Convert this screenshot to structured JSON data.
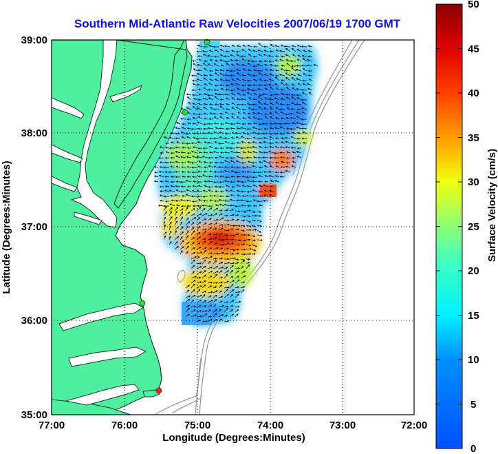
{
  "title": "Southern Mid-Atlantic Raw Velocities 2007/06/19 1700 GMT",
  "x_axis": {
    "label": "Longitude (Degrees:Minutes)",
    "ticks": [
      "77:00",
      "76:00",
      "75:00",
      "74:00",
      "73:00",
      "72:00"
    ],
    "range": [
      -77,
      -72
    ]
  },
  "y_axis": {
    "label": "Latitude (Degrees:Minutes)",
    "ticks": [
      "39:00",
      "38:00",
      "37:00",
      "36:00",
      "35:00"
    ],
    "range": [
      35,
      39
    ]
  },
  "colorbar": {
    "label": "Surface Velocity (cm/s)",
    "ticks": [
      "50",
      "45",
      "40",
      "35",
      "30",
      "25",
      "20",
      "15",
      "10",
      "5",
      "0"
    ],
    "range": [
      0,
      50
    ],
    "colormap": "jet"
  },
  "grid": "dotted",
  "colors": {
    "land": "#4ef0a0",
    "water": "#ffffff",
    "coastline": "#1a3a2a",
    "bathymetry": "#9a9a9a",
    "title": "#1010e0",
    "station_green": "#33dd33",
    "station_red": "#ff2020"
  },
  "stations": [
    {
      "lon": -74.9,
      "lat": 39.0,
      "status": "green"
    },
    {
      "lon": -75.15,
      "lat": 38.22,
      "status": "green"
    },
    {
      "lon": -75.75,
      "lat": 36.17,
      "status": "green"
    },
    {
      "lon": -75.5,
      "lat": 35.25,
      "status": "red"
    }
  ]
}
